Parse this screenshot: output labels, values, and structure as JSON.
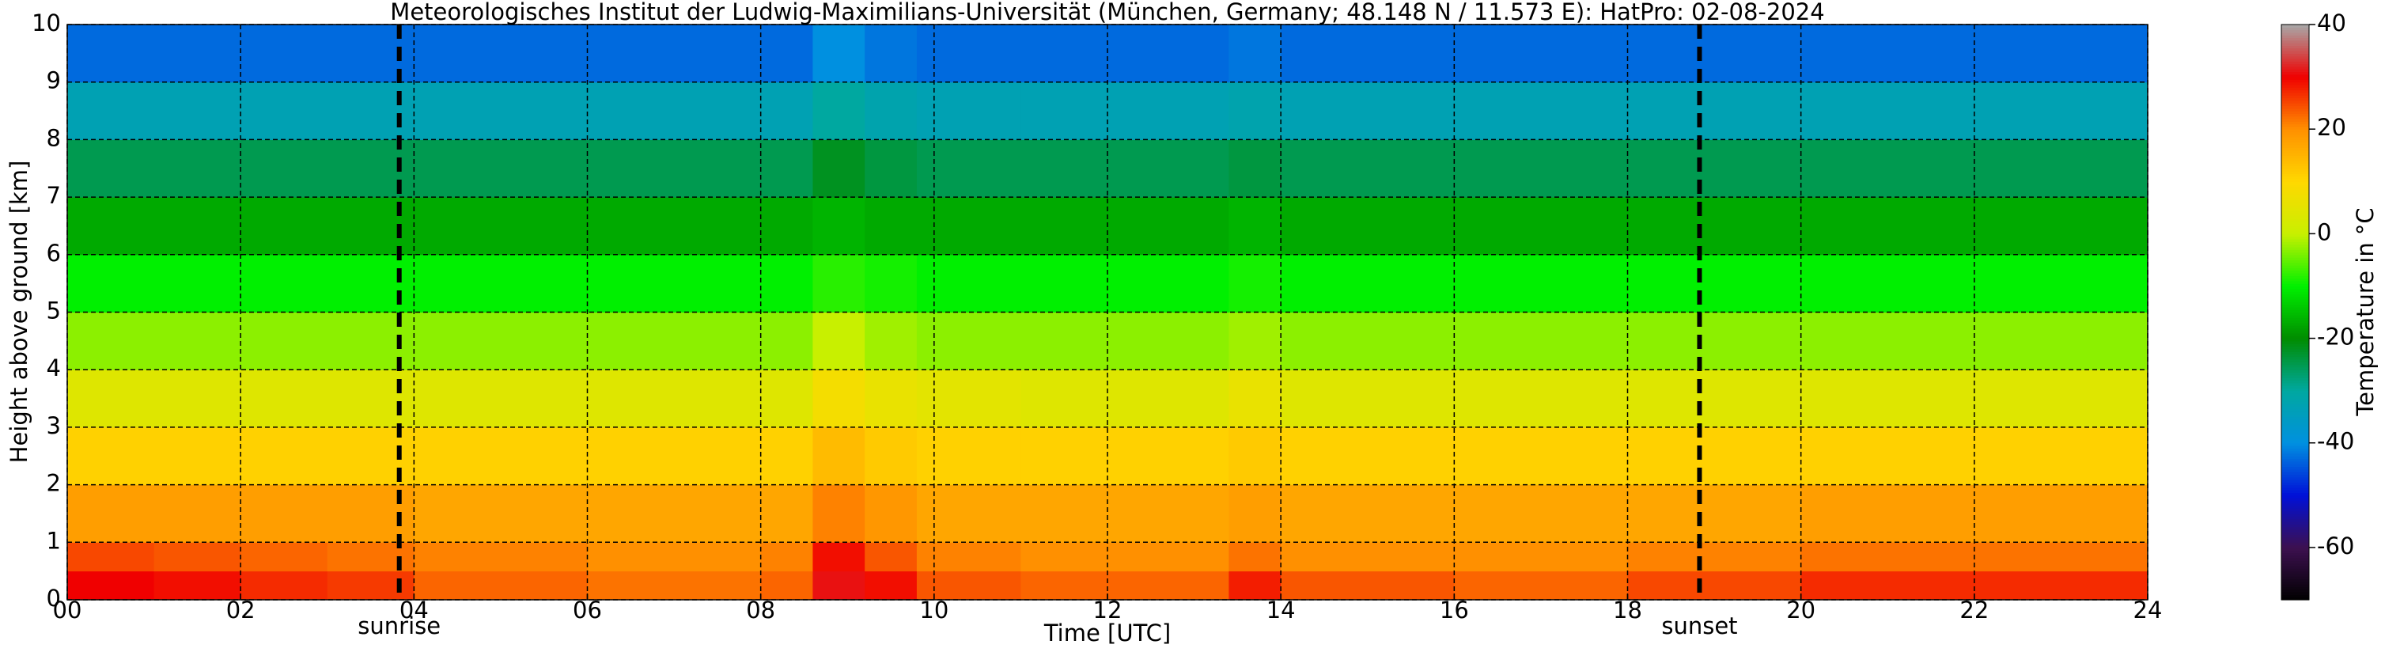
{
  "chart_data": {
    "type": "heatmap",
    "title": "Meteorologisches Institut der Ludwig-Maximilians-Universität (München, Germany; 48.148 N / 11.573 E):    HatPro: 02-08-2024",
    "x_label": "Time [UTC]",
    "y_label": "Height above ground [km]",
    "colorbar_label": "Temperature in °C",
    "x_edges": [
      0,
      1,
      2,
      3,
      4,
      6,
      8,
      8.6,
      9.2,
      9.8,
      11,
      13.4,
      14,
      16,
      18,
      20,
      22,
      24
    ],
    "y_edges": [
      0,
      0.5,
      1,
      2,
      3,
      4,
      5,
      6,
      7,
      8,
      9,
      10
    ],
    "z": [
      [
        30,
        29,
        27,
        26,
        23,
        22,
        23,
        31,
        29,
        24,
        23,
        28,
        24,
        23,
        25,
        27,
        27
      ],
      [
        25,
        24,
        23,
        22,
        21,
        20,
        21,
        29,
        24,
        21,
        20,
        22,
        20,
        20,
        21,
        22,
        22
      ],
      [
        18,
        18,
        18,
        18,
        17,
        17,
        17,
        21,
        19,
        17,
        17,
        18,
        17,
        17,
        17,
        18,
        18
      ],
      [
        11,
        11,
        11,
        11,
        11,
        11,
        11,
        14,
        12,
        11,
        11,
        12,
        11,
        11,
        11,
        11,
        11
      ],
      [
        4,
        4,
        4,
        4,
        4,
        4,
        4,
        8,
        6,
        5,
        4,
        6,
        4,
        4,
        4,
        4,
        4
      ],
      [
        -3,
        -3,
        -3,
        -3,
        -3,
        -3,
        -3,
        0,
        -2,
        -3,
        -3,
        -2,
        -3,
        -3,
        -3,
        -3,
        -3
      ],
      [
        -10,
        -10,
        -10,
        -10,
        -10,
        -10,
        -10,
        -8,
        -9,
        -10,
        -10,
        -9,
        -10,
        -10,
        -10,
        -10,
        -10
      ],
      [
        -17,
        -17,
        -17,
        -17,
        -17,
        -17,
        -17,
        -16,
        -17,
        -17,
        -17,
        -16,
        -17,
        -17,
        -17,
        -17,
        -17
      ],
      [
        -25,
        -25,
        -25,
        -25,
        -25,
        -25,
        -25,
        -22,
        -24,
        -25,
        -25,
        -24,
        -25,
        -25,
        -25,
        -25,
        -25
      ],
      [
        -33,
        -33,
        -33,
        -33,
        -33,
        -33,
        -33,
        -30,
        -32,
        -33,
        -33,
        -32,
        -33,
        -33,
        -33,
        -33,
        -33
      ],
      [
        -43,
        -43,
        -43,
        -43,
        -43,
        -43,
        -43,
        -40,
        -42,
        -43,
        -43,
        -42,
        -43,
        -43,
        -43,
        -43,
        -43
      ]
    ],
    "xlim": [
      0,
      24
    ],
    "ylim": [
      0,
      10
    ],
    "xticks": [
      {
        "value": 0,
        "label": "00"
      },
      {
        "value": 2,
        "label": "02"
      },
      {
        "value": 4,
        "label": "04"
      },
      {
        "value": 6,
        "label": "06"
      },
      {
        "value": 8,
        "label": "08"
      },
      10,
      12,
      14,
      16,
      18,
      20,
      22,
      24
    ],
    "yticks": [
      0,
      1,
      2,
      3,
      4,
      5,
      6,
      7,
      8,
      9,
      10
    ],
    "clim": [
      -70,
      40
    ],
    "cticks": [
      -60,
      -40,
      -20,
      0,
      20,
      40
    ],
    "colormap": [
      "#000000",
      "#3d1050",
      "#0010d8",
      "#0090e0",
      "#00a8a0",
      "#008c00",
      "#00f000",
      "#c8f000",
      "#ffd800",
      "#ff9000",
      "#f00000",
      "#a8a8a8"
    ],
    "grid": true,
    "events": [
      {
        "x": 3.83,
        "label": "sunrise"
      },
      {
        "x": 18.83,
        "label": "sunset"
      }
    ]
  }
}
